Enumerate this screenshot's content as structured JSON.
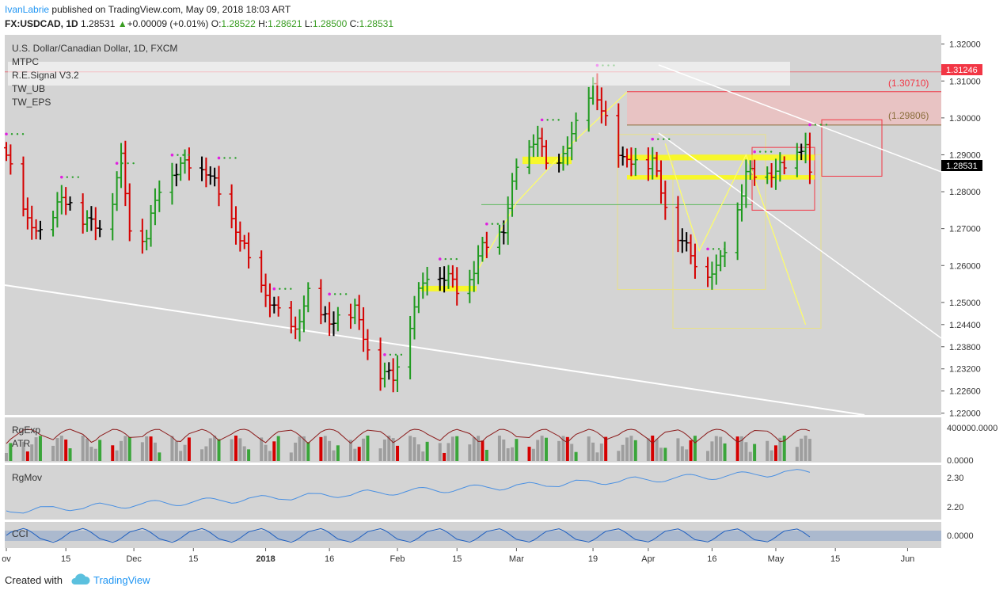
{
  "header": {
    "author": "IvanLabrie",
    "published": "published on TradingView.com, May 09, 2018 18:03 ART",
    "symbol": "FX:USDCAD, 1D",
    "last": "1.28531",
    "change": "+0.00009 (+0.01%)",
    "o_label": "O:",
    "o": "1.28522",
    "h_label": "H:",
    "h": "1.28621",
    "l_label": "L:",
    "l": "1.28500",
    "c_label": "C:",
    "c": "1.28531"
  },
  "main": {
    "title": "U.S. Dollar/Canadian Dollar, 1D, FXCM",
    "indicators": [
      "MTPC",
      "R.E.Signal V3.2",
      "TW_UB",
      "TW_EPS"
    ],
    "price_badges": [
      {
        "text": "1.31246",
        "bg": "#f23645",
        "fg": "#ffffff"
      },
      {
        "text": "1.28531",
        "bg": "#000000",
        "fg": "#ffffff"
      }
    ],
    "annotations": [
      "(1.30710)",
      "(1.29806)"
    ]
  },
  "panes": {
    "rgexp": {
      "labels": [
        "RgExp",
        "ATR"
      ],
      "ticks": [
        "400000.0000",
        "0.0000"
      ]
    },
    "rgmov": {
      "label": "RgMov",
      "ticks": [
        "2.30",
        "2.20"
      ]
    },
    "cci": {
      "label": "CCI",
      "ticks": [
        "0.0000"
      ]
    }
  },
  "footer": {
    "created": "Created with",
    "brand": "TradingView"
  },
  "colors": {
    "up": "#1e9a1e",
    "down": "#d50000",
    "neutral": "#000000",
    "bg": "#d4d4d4",
    "accent": "#2196f3",
    "highlight": "#ffff00"
  },
  "chart_data": {
    "type": "ohlc",
    "title": "U.S. Dollar/Canadian Dollar, 1D, FXCM",
    "x_ticks": [
      "ov",
      "15",
      "Dec",
      "15",
      "2018",
      "16",
      "Feb",
      "15",
      "Mar",
      "19",
      "Apr",
      "16",
      "May",
      "15",
      "Jun"
    ],
    "y_ticks": [
      "1.32000",
      "1.31000",
      "1.30000",
      "1.29000",
      "1.28000",
      "1.27000",
      "1.26000",
      "1.25000",
      "1.24400",
      "1.23800",
      "1.23200",
      "1.22600",
      "1.22000"
    ],
    "ylim": [
      1.2195,
      1.3225
    ],
    "close_anchors": [
      {
        "date": "Nov 01",
        "close": 1.289
      },
      {
        "date": "Nov 06",
        "close": 1.272
      },
      {
        "date": "Nov 09",
        "close": 1.268
      },
      {
        "date": "Nov 14",
        "close": 1.278
      },
      {
        "date": "Nov 20",
        "close": 1.272
      },
      {
        "date": "Nov 24",
        "close": 1.269
      },
      {
        "date": "Nov 28",
        "close": 1.2885
      },
      {
        "date": "Nov 30",
        "close": 1.27
      },
      {
        "date": "Dec 04",
        "close": 1.268
      },
      {
        "date": "Dec 08",
        "close": 1.285
      },
      {
        "date": "Dec 14",
        "close": 1.287
      },
      {
        "date": "Dec 18",
        "close": 1.286
      },
      {
        "date": "Dec 25",
        "close": 1.27
      },
      {
        "date": "Dec 29",
        "close": 1.258
      },
      {
        "date": "Jan 03",
        "close": 1.248
      },
      {
        "date": "Jan 08",
        "close": 1.242
      },
      {
        "date": "Jan 11",
        "close": 1.252
      },
      {
        "date": "Jan 16",
        "close": 1.244
      },
      {
        "date": "Jan 22",
        "close": 1.248
      },
      {
        "date": "Jan 26",
        "close": 1.233
      },
      {
        "date": "Jan 31",
        "close": 1.229
      },
      {
        "date": "Feb 05",
        "close": 1.249
      },
      {
        "date": "Feb 09",
        "close": 1.26
      },
      {
        "date": "Feb 13",
        "close": 1.256
      },
      {
        "date": "Feb 16",
        "close": 1.252
      },
      {
        "date": "Feb 21",
        "close": 1.264
      },
      {
        "date": "Feb 26",
        "close": 1.27
      },
      {
        "date": "Mar 01",
        "close": 1.286
      },
      {
        "date": "Mar 06",
        "close": 1.295
      },
      {
        "date": "Mar 09",
        "close": 1.282
      },
      {
        "date": "Mar 14",
        "close": 1.295
      },
      {
        "date": "Mar 19",
        "close": 1.308
      },
      {
        "date": "Mar 21",
        "close": 1.302
      },
      {
        "date": "Mar 26",
        "close": 1.288
      },
      {
        "date": "Mar 29",
        "close": 1.288
      },
      {
        "date": "Apr 02",
        "close": 1.288
      },
      {
        "date": "Apr 05",
        "close": 1.276
      },
      {
        "date": "Apr 10",
        "close": 1.264
      },
      {
        "date": "Apr 13",
        "close": 1.259
      },
      {
        "date": "Apr 17",
        "close": 1.258
      },
      {
        "date": "Apr 20",
        "close": 1.268
      },
      {
        "date": "Apr 24",
        "close": 1.284
      },
      {
        "date": "Apr 27",
        "close": 1.285
      },
      {
        "date": "May 01",
        "close": 1.285
      },
      {
        "date": "May 04",
        "close": 1.287
      },
      {
        "date": "May 08",
        "close": 1.293
      },
      {
        "date": "May 09",
        "close": 1.28531
      }
    ],
    "levels": [
      1.31246,
      1.3071,
      1.29806,
      1.28531
    ]
  }
}
